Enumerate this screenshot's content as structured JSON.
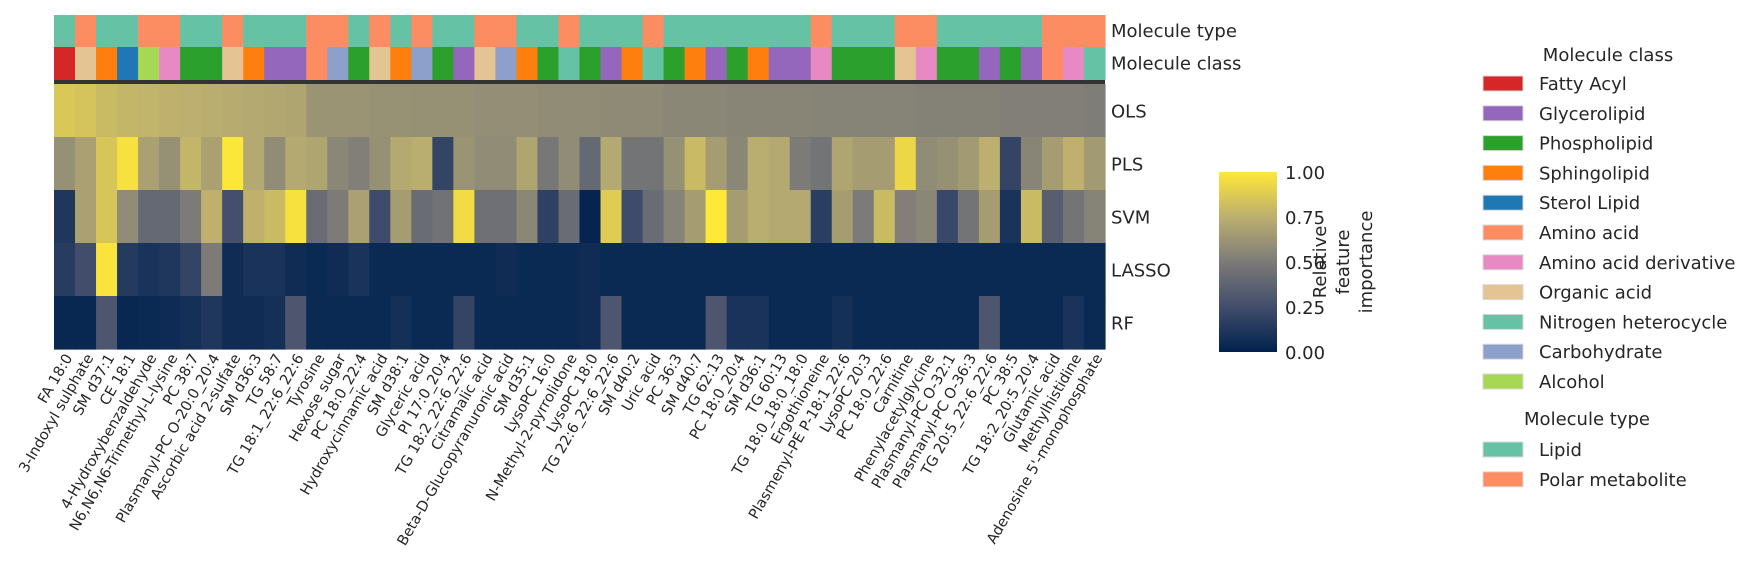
{
  "chart_data": {
    "type": "heatmap",
    "title": "",
    "xlabel": "",
    "ylabel": "",
    "row_labels": [
      "OLS",
      "PLS",
      "SVM",
      "LASSO",
      "RF"
    ],
    "annotation_row_labels": [
      "Molecule type",
      "Molecule class"
    ],
    "features": [
      "FA 18:0",
      "3-Indoxyl sulphate",
      "SM d37:1",
      "CE 18:1",
      "4-Hydroxybenzaldehyde",
      "N6,N6,N6-Trimethyl-L-lysine",
      "PC 38:7",
      "Plasmanyl-PC O-20:0_20:4",
      "Ascorbic acid 2-sulfate",
      "SM d36:3",
      "TG 58:7",
      "TG 18:1_22:6_22:6",
      "Tyrosine",
      "Hexose sugar",
      "PC 18:0_22:4",
      "Hydroxycinnamic acid",
      "SM d38:1",
      "Glyceric acid",
      "PI 17:0_20:4",
      "TG 18:2_22:6_22:6",
      "Citramalic acid",
      "Beta-D-Glucopyranuronic acid",
      "SM d35:1",
      "LysoPC 16:0",
      "N-Methyl-2-pyrrolidone",
      "LysoPC 18:0",
      "TG 22:6_22:6_22:6",
      "SM d40:2",
      "Uric acid",
      "PC 36:3",
      "SM d40:7",
      "TG 62:13",
      "PC 18:0_20:4",
      "SM d36:1",
      "TG 60:13",
      "TG 18:0_18:0_18:0",
      "Ergothioneine",
      "Plasmenyl-PE P-18:1_22:6",
      "LysoPC 20:3",
      "PC 18:0_22:6",
      "Carnitine",
      "Phenylacetylglycine",
      "Plasmanyl-PC O-32:1",
      "Plasmanyl-PC O-36:3",
      "TG 20:5_22:6_22:6",
      "PC 38:5",
      "TG 18:2_20:5_20:4",
      "Glutamic acid",
      "Methylhistidine",
      "Adenosine 5'-monophosphate"
    ],
    "molecule_type": [
      "Lipid",
      "Polar metabolite",
      "Lipid",
      "Lipid",
      "Polar metabolite",
      "Polar metabolite",
      "Lipid",
      "Lipid",
      "Polar metabolite",
      "Lipid",
      "Lipid",
      "Lipid",
      "Polar metabolite",
      "Polar metabolite",
      "Lipid",
      "Polar metabolite",
      "Lipid",
      "Polar metabolite",
      "Lipid",
      "Lipid",
      "Polar metabolite",
      "Polar metabolite",
      "Lipid",
      "Lipid",
      "Polar metabolite",
      "Lipid",
      "Lipid",
      "Lipid",
      "Polar metabolite",
      "Lipid",
      "Lipid",
      "Lipid",
      "Lipid",
      "Lipid",
      "Lipid",
      "Lipid",
      "Polar metabolite",
      "Lipid",
      "Lipid",
      "Lipid",
      "Polar metabolite",
      "Polar metabolite",
      "Lipid",
      "Lipid",
      "Lipid",
      "Lipid",
      "Lipid",
      "Polar metabolite",
      "Polar metabolite",
      "Polar metabolite"
    ],
    "molecule_class": [
      "Fatty Acyl",
      "Organic acid",
      "Sphingolipid",
      "Sterol Lipid",
      "Alcohol",
      "Amino acid derivative",
      "Phospholipid",
      "Phospholipid",
      "Organic acid",
      "Sphingolipid",
      "Glycerolipid",
      "Glycerolipid",
      "Amino acid",
      "Carbohydrate",
      "Phospholipid",
      "Organic acid",
      "Sphingolipid",
      "Carbohydrate",
      "Phospholipid",
      "Glycerolipid",
      "Organic acid",
      "Carbohydrate",
      "Sphingolipid",
      "Phospholipid",
      "Nitrogen heterocycle",
      "Phospholipid",
      "Glycerolipid",
      "Sphingolipid",
      "Nitrogen heterocycle",
      "Phospholipid",
      "Sphingolipid",
      "Glycerolipid",
      "Phospholipid",
      "Sphingolipid",
      "Glycerolipid",
      "Glycerolipid",
      "Amino acid derivative",
      "Phospholipid",
      "Phospholipid",
      "Phospholipid",
      "Organic acid",
      "Amino acid derivative",
      "Phospholipid",
      "Phospholipid",
      "Glycerolipid",
      "Phospholipid",
      "Glycerolipid",
      "Amino acid",
      "Amino acid derivative",
      "Nitrogen heterocycle"
    ],
    "values": {
      "OLS": [
        0.86,
        0.84,
        0.8,
        0.78,
        0.77,
        0.76,
        0.75,
        0.74,
        0.73,
        0.72,
        0.71,
        0.7,
        0.62,
        0.62,
        0.62,
        0.61,
        0.61,
        0.6,
        0.6,
        0.6,
        0.59,
        0.59,
        0.59,
        0.58,
        0.58,
        0.58,
        0.57,
        0.57,
        0.57,
        0.56,
        0.56,
        0.56,
        0.55,
        0.55,
        0.55,
        0.55,
        0.54,
        0.54,
        0.54,
        0.54,
        0.54,
        0.53,
        0.53,
        0.53,
        0.53,
        0.52,
        0.52,
        0.52,
        0.52,
        0.51
      ],
      "PLS": [
        0.6,
        0.68,
        0.85,
        0.97,
        0.68,
        0.6,
        0.78,
        0.68,
        0.99,
        0.72,
        0.58,
        0.72,
        0.7,
        0.56,
        0.52,
        0.6,
        0.72,
        0.74,
        0.2,
        0.62,
        0.58,
        0.58,
        0.7,
        0.48,
        0.58,
        0.4,
        0.72,
        0.46,
        0.46,
        0.6,
        0.8,
        0.66,
        0.56,
        0.74,
        0.72,
        0.5,
        0.46,
        0.7,
        0.66,
        0.66,
        0.93,
        0.58,
        0.6,
        0.65,
        0.75,
        0.2,
        0.55,
        0.66,
        0.76,
        0.65
      ],
      "SVM": [
        0.12,
        0.68,
        0.85,
        0.58,
        0.4,
        0.4,
        0.5,
        0.76,
        0.26,
        0.76,
        0.8,
        0.97,
        0.42,
        0.5,
        0.68,
        0.24,
        0.66,
        0.42,
        0.45,
        0.95,
        0.44,
        0.44,
        0.56,
        0.18,
        0.42,
        0.02,
        0.88,
        0.24,
        0.42,
        0.54,
        0.66,
        1.0,
        0.66,
        0.74,
        0.72,
        0.72,
        0.16,
        0.66,
        0.5,
        0.8,
        0.52,
        0.56,
        0.22,
        0.46,
        0.66,
        0.1,
        0.8,
        0.34,
        0.46,
        0.54
      ],
      "LASSO": [
        0.15,
        0.25,
        0.98,
        0.14,
        0.1,
        0.12,
        0.2,
        0.5,
        0.06,
        0.1,
        0.1,
        0.06,
        0.04,
        0.06,
        0.1,
        0.04,
        0.04,
        0.04,
        0.04,
        0.04,
        0.04,
        0.06,
        0.04,
        0.04,
        0.04,
        0.06,
        0.04,
        0.04,
        0.04,
        0.04,
        0.04,
        0.04,
        0.04,
        0.04,
        0.04,
        0.04,
        0.04,
        0.04,
        0.04,
        0.04,
        0.04,
        0.04,
        0.04,
        0.04,
        0.04,
        0.04,
        0.04,
        0.04,
        0.04,
        0.04
      ],
      "RF": [
        0.03,
        0.03,
        0.3,
        0.03,
        0.04,
        0.05,
        0.08,
        0.12,
        0.06,
        0.06,
        0.08,
        0.3,
        0.04,
        0.04,
        0.04,
        0.04,
        0.08,
        0.04,
        0.04,
        0.2,
        0.04,
        0.04,
        0.04,
        0.04,
        0.04,
        0.06,
        0.3,
        0.04,
        0.04,
        0.04,
        0.04,
        0.3,
        0.1,
        0.1,
        0.04,
        0.04,
        0.04,
        0.08,
        0.04,
        0.04,
        0.04,
        0.04,
        0.04,
        0.04,
        0.3,
        0.04,
        0.04,
        0.04,
        0.1,
        0.04
      ]
    },
    "colorbar": {
      "label": "Relative\nfeature\nimportance",
      "ticks": [
        "0.00",
        "0.25",
        "0.50",
        "0.75",
        "1.00"
      ],
      "range": [
        0,
        1
      ],
      "colormap": "cividis",
      "colors": [
        "#00224e",
        "#414d6b",
        "#7c7b78",
        "#bcaf6f",
        "#fee838"
      ]
    },
    "legend_class": {
      "title": "Molecule class",
      "items": [
        {
          "label": "Fatty Acyl",
          "color": "#d62728"
        },
        {
          "label": "Glycerolipid",
          "color": "#9467bd"
        },
        {
          "label": "Phospholipid",
          "color": "#2ca02c"
        },
        {
          "label": "Sphingolipid",
          "color": "#ff7f0e"
        },
        {
          "label": "Sterol Lipid",
          "color": "#1f77b4"
        },
        {
          "label": "Amino acid",
          "color": "#fc8d62"
        },
        {
          "label": "Amino acid derivative",
          "color": "#e78ac3"
        },
        {
          "label": "Organic acid",
          "color": "#e5c494"
        },
        {
          "label": "Nitrogen heterocycle",
          "color": "#66c2a5"
        },
        {
          "label": "Carbohydrate",
          "color": "#8da0cb"
        },
        {
          "label": "Alcohol",
          "color": "#a6d854"
        }
      ]
    },
    "legend_type": {
      "title": "Molecule type",
      "items": [
        {
          "label": "Lipid",
          "color": "#66c2a5"
        },
        {
          "label": "Polar metabolite",
          "color": "#fc8d62"
        }
      ]
    },
    "separator_color": "#333333"
  }
}
